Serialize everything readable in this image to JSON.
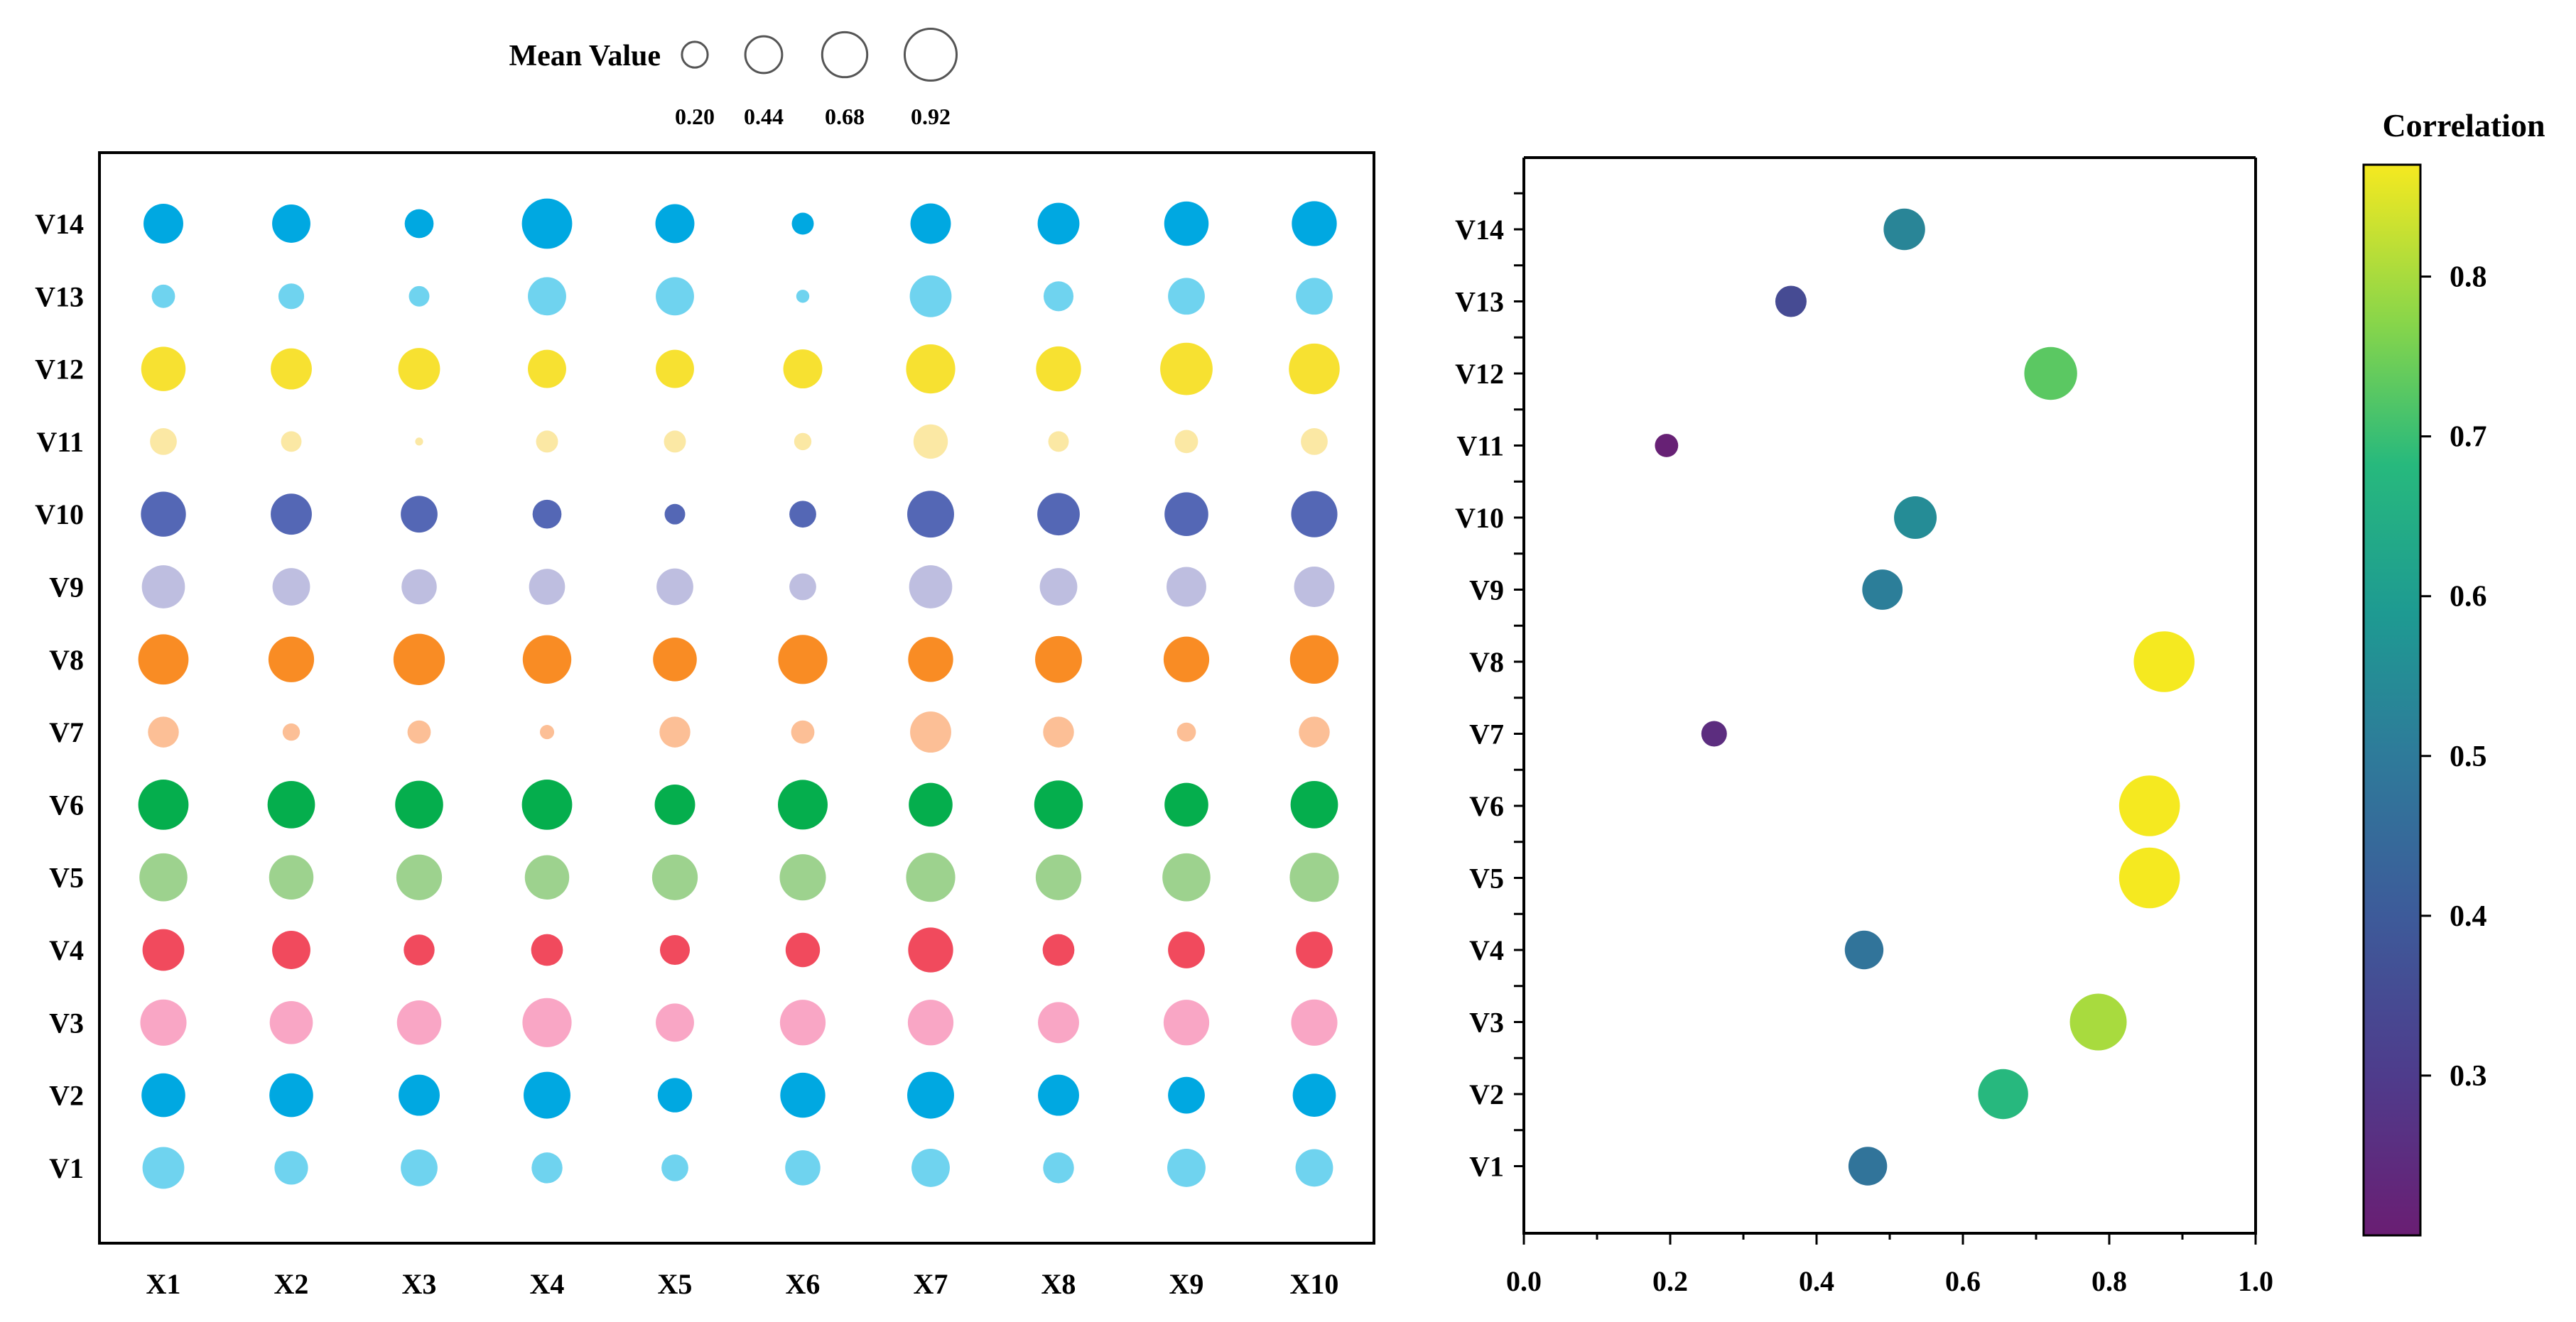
{
  "chart_data": [
    {
      "type": "bubble-grid",
      "xcategories": [
        "X1",
        "X2",
        "X3",
        "X4",
        "X5",
        "X6",
        "X7",
        "X8",
        "X9",
        "X10"
      ],
      "ycategories": [
        "V1",
        "V2",
        "V3",
        "V4",
        "V5",
        "V6",
        "V7",
        "V8",
        "V9",
        "V10",
        "V11",
        "V12",
        "V13",
        "V14"
      ],
      "colors": {
        "V1": "#6fd3ef",
        "V2": "#00a8e1",
        "V3": "#f9a6c5",
        "V4": "#f14a5d",
        "V5": "#9dd28e",
        "V6": "#05ae4d",
        "V7": "#fcbf96",
        "V8": "#f98c24",
        "V9": "#bebee0",
        "V10": "#5467b5",
        "V11": "#fbe8a4",
        "V12": "#f7e131",
        "V13": "#6fd3ef",
        "V14": "#00a8e1"
      },
      "size_legend": {
        "title": "Mean Value",
        "values": [
          0.2,
          0.44,
          0.68,
          0.92
        ],
        "labels": [
          "0.20",
          "0.44",
          "0.68",
          "0.92"
        ]
      },
      "values": {
        "V1": [
          0.58,
          0.36,
          0.44,
          0.3,
          0.22,
          0.4,
          0.48,
          0.3,
          0.48,
          0.46
        ],
        "V2": [
          0.64,
          0.64,
          0.56,
          0.74,
          0.38,
          0.68,
          0.74,
          0.56,
          0.44,
          0.62
        ],
        "V3": [
          0.72,
          0.62,
          0.66,
          0.82,
          0.48,
          0.7,
          0.7,
          0.56,
          0.7,
          0.72
        ],
        "V4": [
          0.58,
          0.48,
          0.3,
          0.32,
          0.28,
          0.38,
          0.68,
          0.32,
          0.44,
          0.44
        ],
        "V5": [
          0.78,
          0.66,
          0.7,
          0.66,
          0.7,
          0.72,
          0.82,
          0.7,
          0.78,
          0.82
        ],
        "V6": [
          0.86,
          0.76,
          0.78,
          0.86,
          0.54,
          0.84,
          0.64,
          0.8,
          0.64,
          0.76
        ],
        "V7": [
          0.3,
          0.08,
          0.16,
          0.05,
          0.3,
          0.16,
          0.56,
          0.3,
          0.1,
          0.3
        ],
        "V8": [
          0.86,
          0.7,
          0.9,
          0.8,
          0.64,
          0.82,
          0.68,
          0.74,
          0.7,
          0.8
        ],
        "V9": [
          0.62,
          0.46,
          0.4,
          0.42,
          0.44,
          0.22,
          0.62,
          0.46,
          0.52,
          0.54
        ],
        "V10": [
          0.68,
          0.56,
          0.44,
          0.26,
          0.12,
          0.22,
          0.74,
          0.6,
          0.64,
          0.72
        ],
        "V11": [
          0.22,
          0.12,
          0.01,
          0.14,
          0.14,
          0.08,
          0.38,
          0.12,
          0.16,
          0.22
        ],
        "V12": [
          0.66,
          0.56,
          0.58,
          0.48,
          0.48,
          0.5,
          0.82,
          0.68,
          0.94,
          0.88
        ],
        "V13": [
          0.16,
          0.2,
          0.12,
          0.48,
          0.48,
          0.04,
          0.58,
          0.28,
          0.44,
          0.44
        ],
        "V14": [
          0.52,
          0.48,
          0.26,
          0.86,
          0.5,
          0.14,
          0.54,
          0.58,
          0.66,
          0.68
        ]
      }
    },
    {
      "type": "scatter",
      "ycategories": [
        "V1",
        "V2",
        "V3",
        "V4",
        "V5",
        "V6",
        "V7",
        "V8",
        "V9",
        "V10",
        "V11",
        "V12",
        "V13",
        "V14"
      ],
      "x": [
        0.47,
        0.655,
        0.785,
        0.465,
        0.855,
        0.855,
        0.26,
        0.875,
        0.49,
        0.535,
        0.195,
        0.72,
        0.365,
        0.52
      ],
      "color_values": [
        0.48,
        0.68,
        0.8,
        0.48,
        0.87,
        0.87,
        0.25,
        0.87,
        0.51,
        0.55,
        0.21,
        0.73,
        0.35,
        0.53
      ],
      "xlim": [
        0.0,
        1.0
      ],
      "xticks": [
        "0.0",
        "0.2",
        "0.4",
        "0.6",
        "0.8",
        "1.0"
      ],
      "colorbar": {
        "title": "Correlation",
        "range": [
          0.2,
          0.87
        ],
        "ticks": [
          0.3,
          0.4,
          0.5,
          0.6,
          0.7,
          0.8
        ],
        "tick_labels": [
          "0.3",
          "0.4",
          "0.5",
          "0.6",
          "0.7",
          "0.8"
        ]
      }
    }
  ]
}
